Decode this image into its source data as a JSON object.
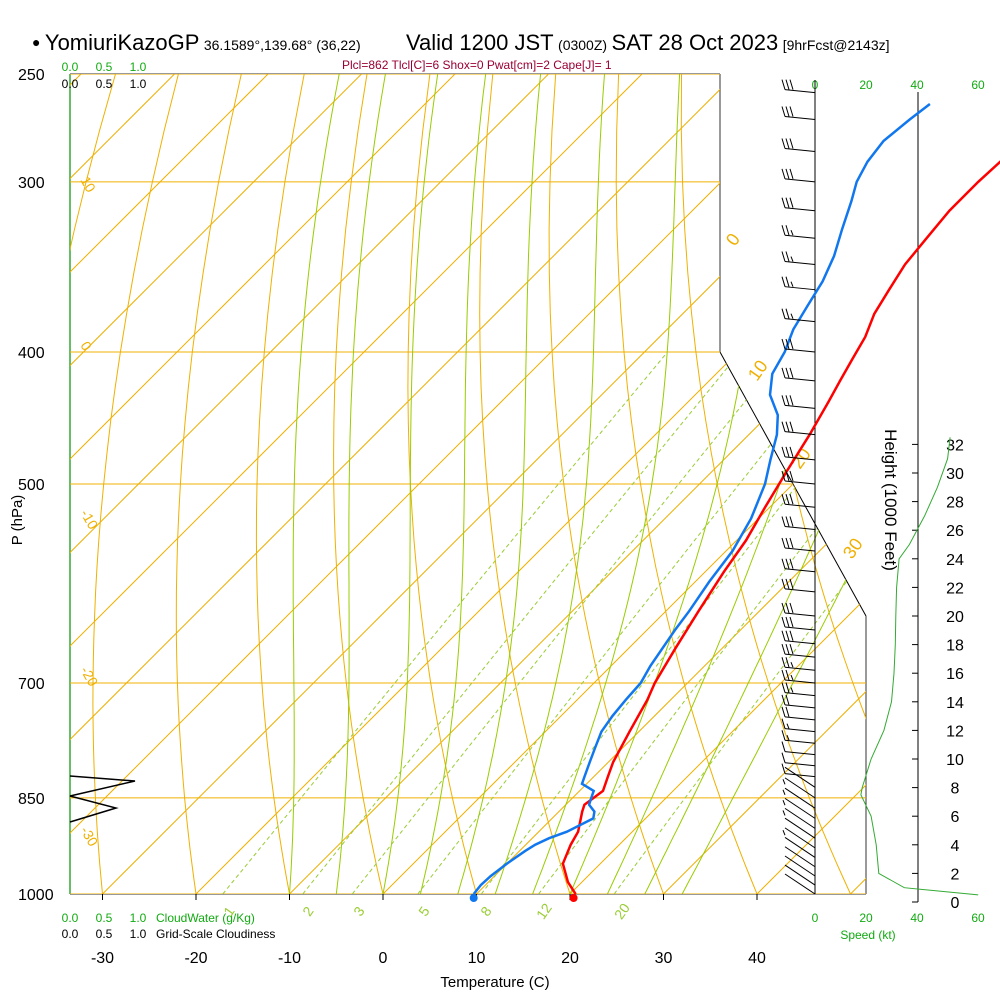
{
  "header": {
    "bullet": "●",
    "model": "YomiuriKazoGP",
    "location": "36.1589°,139.68° (36,22)",
    "valid_main": "Valid 1200 JST",
    "valid_utc": "(0300Z)",
    "date": "SAT 28 Oct 2023",
    "forecast": "[9hrFcst@2143z]"
  },
  "indices": "Plcl=862 Tlcl[C]=6 Shox=0 Pwat[cm]=2 Cape[J]= 1",
  "colors": {
    "isotherm": "#f0b000",
    "dry_adiabat": "#f0b000",
    "moist_adiabat": "#99cc00",
    "mixing_ratio": "#99cc33",
    "temperature": "#ff0000",
    "dewpoint": "#1177ee",
    "height": "#33aa33",
    "index_text": "#990033",
    "green_text": "#11aa11"
  },
  "cloud_scale": {
    "cloudwater_ticks": [
      "0.0",
      "0.5",
      "1.0"
    ],
    "cloudiness_ticks": [
      "0.0",
      "0.5",
      "1.0"
    ],
    "cloudwater_label": "CloudWater (g/Kg)",
    "cloudiness_label": "Grid-Scale Cloudiness"
  },
  "speed_scale": {
    "ticks": [
      "0",
      "20",
      "40",
      "60"
    ],
    "label": "Speed (kt)"
  },
  "chart_data": {
    "type": "line",
    "subtype": "skew-T log-P",
    "xlabel": "Temperature (C)",
    "ylabel": "P (hPa)",
    "y2label": "Height (1000 Feet)",
    "x_ticks": [
      -30,
      -20,
      -10,
      0,
      10,
      20,
      30,
      40
    ],
    "p_ticks": [
      250,
      300,
      400,
      500,
      700,
      850,
      1000
    ],
    "height_ticks": [
      0,
      2,
      4,
      6,
      8,
      10,
      12,
      14,
      16,
      18,
      20,
      22,
      24,
      26,
      28,
      30,
      32
    ],
    "mixing_ratio_labels": [
      "1",
      "2",
      "3",
      "5",
      "8",
      "12",
      "20"
    ],
    "moist_labels_left": [
      "10",
      "0",
      "-10",
      "-20",
      "-30"
    ],
    "moist_labels_right": [
      "0",
      "10",
      "20",
      "30"
    ],
    "series": [
      {
        "name": "Temperature",
        "points": [
          [
            20.6,
            1000
          ],
          [
            18.5,
            980
          ],
          [
            16,
            950
          ],
          [
            14.8,
            920
          ],
          [
            14.2,
            900
          ],
          [
            12.5,
            870
          ],
          [
            12,
            860
          ],
          [
            12.5,
            840
          ],
          [
            11.5,
            820
          ],
          [
            10.5,
            800
          ],
          [
            9,
            760
          ],
          [
            7.5,
            720
          ],
          [
            6.5,
            700
          ],
          [
            5,
            660
          ],
          [
            3.5,
            620
          ],
          [
            2,
            580
          ],
          [
            1,
            550
          ],
          [
            -0.5,
            520
          ],
          [
            -2,
            490
          ],
          [
            -3.5,
            460
          ],
          [
            -5,
            435
          ],
          [
            -6,
            420
          ],
          [
            -7,
            405
          ],
          [
            -8,
            390
          ],
          [
            -9.5,
            375
          ],
          [
            -10.5,
            360
          ],
          [
            -11.5,
            345
          ],
          [
            -12,
            330
          ],
          [
            -12.5,
            315
          ],
          [
            -12.5,
            300
          ],
          [
            -12.2,
            285
          ],
          [
            -11.8,
            270
          ],
          [
            -11.5,
            262
          ]
        ]
      },
      {
        "name": "Dewpoint",
        "points": [
          [
            9.7,
            1000
          ],
          [
            9.5,
            985
          ],
          [
            9.6,
            970
          ],
          [
            10,
            950
          ],
          [
            10.6,
            930
          ],
          [
            11,
            920
          ],
          [
            11.8,
            910
          ],
          [
            13,
            900
          ],
          [
            14.4,
            880
          ],
          [
            13.8,
            870
          ],
          [
            12.5,
            860
          ],
          [
            12,
            850
          ],
          [
            11.5,
            840
          ],
          [
            10.5,
            835
          ],
          [
            9.5,
            830
          ],
          [
            9,
            820
          ],
          [
            8,
            800
          ],
          [
            7,
            780
          ],
          [
            6,
            760
          ],
          [
            5.5,
            740
          ],
          [
            5.2,
            720
          ],
          [
            5,
            700
          ],
          [
            4.2,
            680
          ],
          [
            3,
            640
          ],
          [
            2.5,
            620
          ],
          [
            1.5,
            590
          ],
          [
            0.7,
            560
          ],
          [
            -0.8,
            530
          ],
          [
            -3,
            500
          ],
          [
            -5,
            480
          ],
          [
            -7,
            460
          ],
          [
            -9,
            445
          ],
          [
            -12,
            430
          ],
          [
            -14,
            415
          ],
          [
            -15,
            400
          ],
          [
            -16.5,
            385
          ],
          [
            -17.5,
            370
          ],
          [
            -18.5,
            355
          ],
          [
            -20,
            340
          ],
          [
            -22,
            325
          ],
          [
            -24,
            310
          ],
          [
            -25.5,
            300
          ],
          [
            -26.5,
            290
          ],
          [
            -27,
            280
          ],
          [
            -26.5,
            270
          ],
          [
            -26,
            263
          ]
        ]
      }
    ],
    "height_profile": [
      [
        0.5,
        64
      ],
      [
        1,
        35
      ],
      [
        1.5,
        30
      ],
      [
        2,
        25
      ],
      [
        4,
        24
      ],
      [
        6,
        22
      ],
      [
        7.5,
        18
      ],
      [
        8,
        18.5
      ],
      [
        10,
        22
      ],
      [
        12,
        27
      ],
      [
        14,
        30
      ],
      [
        16,
        31
      ],
      [
        18,
        31.5
      ],
      [
        20,
        31.7
      ],
      [
        22,
        32
      ],
      [
        24,
        33
      ],
      [
        25,
        37
      ],
      [
        27,
        43
      ],
      [
        29,
        48
      ],
      [
        31,
        52
      ],
      [
        32.5,
        53
      ]
    ],
    "winds": [
      [
        1000,
        0,
        2
      ],
      [
        985,
        0,
        3
      ],
      [
        970,
        0,
        3
      ],
      [
        955,
        0,
        3
      ],
      [
        940,
        0,
        3
      ],
      [
        925,
        0,
        4
      ],
      [
        910,
        0,
        5
      ],
      [
        895,
        0,
        4
      ],
      [
        880,
        0,
        5
      ],
      [
        865,
        0,
        6
      ],
      [
        850,
        0,
        7
      ],
      [
        835,
        0,
        8
      ],
      [
        820,
        0,
        10
      ],
      [
        805,
        0,
        12
      ],
      [
        790,
        0,
        14
      ],
      [
        775,
        0,
        16
      ],
      [
        760,
        0,
        18
      ],
      [
        745,
        0,
        20
      ],
      [
        730,
        0,
        22
      ],
      [
        715,
        0,
        25
      ],
      [
        700,
        0,
        28
      ],
      [
        685,
        0,
        29
      ],
      [
        670,
        0,
        30
      ],
      [
        655,
        0,
        31
      ],
      [
        640,
        0,
        32
      ],
      [
        625,
        0,
        33
      ],
      [
        600,
        0,
        33
      ],
      [
        580,
        0,
        33
      ],
      [
        560,
        0,
        33
      ],
      [
        540,
        0,
        32
      ],
      [
        520,
        0,
        32
      ],
      [
        500,
        0,
        33
      ],
      [
        480,
        0,
        33
      ],
      [
        460,
        0,
        32
      ],
      [
        440,
        0,
        31
      ],
      [
        420,
        0,
        31
      ],
      [
        400,
        0,
        30
      ],
      [
        380,
        0,
        28
      ],
      [
        360,
        0,
        26
      ],
      [
        345,
        0,
        26
      ],
      [
        330,
        0,
        28
      ],
      [
        315,
        0,
        32
      ],
      [
        300,
        0,
        33
      ],
      [
        285,
        0,
        33
      ],
      [
        270,
        0,
        34
      ],
      [
        258,
        0,
        34
      ]
    ]
  }
}
